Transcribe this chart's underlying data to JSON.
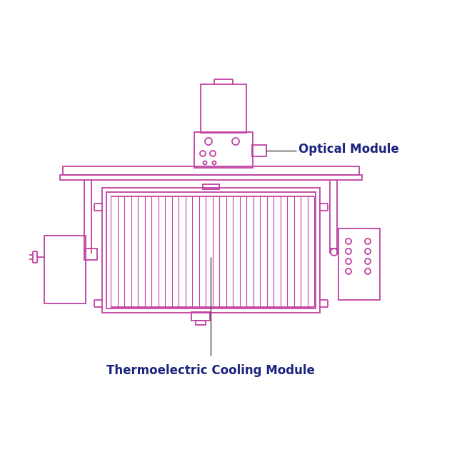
{
  "bg_color": "#ffffff",
  "draw_color": "#c040a0",
  "label_color": "#1a237e",
  "annotation_line_color": "#444444",
  "label_optical": "Optical Module",
  "label_cooling": "Thermoelectric Cooling Module",
  "figsize": [
    6.4,
    6.4
  ],
  "dpi": 100
}
